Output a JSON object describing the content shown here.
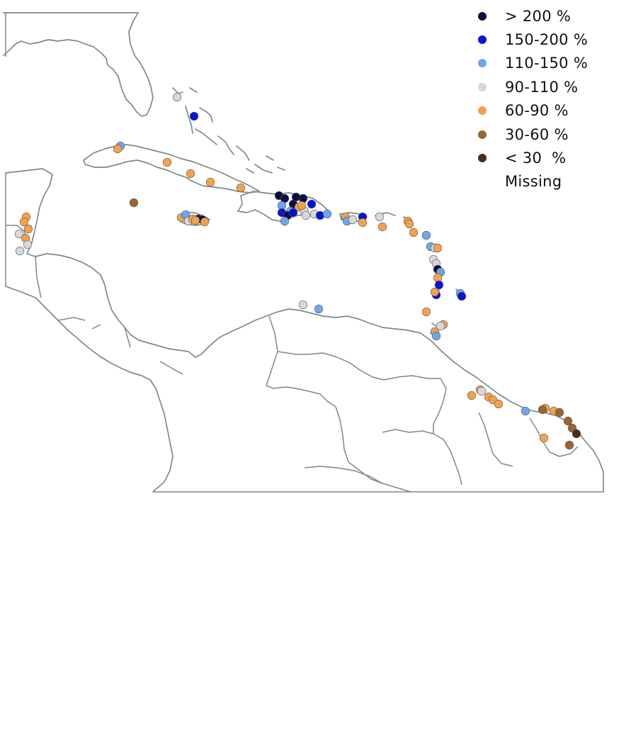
{
  "legend": {
    "items": [
      {
        "key": "gt200",
        "label": "> 200 %",
        "color": "#0b0d45"
      },
      {
        "key": "150-200",
        "label": "150-200 %",
        "color": "#0613d8"
      },
      {
        "key": "110-150",
        "label": "110-150 %",
        "color": "#6ea6ec"
      },
      {
        "key": "90-110",
        "label": "90-110 %",
        "color": "#d8d8d8"
      },
      {
        "key": "60-90",
        "label": "60-90 %",
        "color": "#f4a14a"
      },
      {
        "key": "30-60",
        "label": "30-60 %",
        "color": "#9b6430"
      },
      {
        "key": "lt30",
        "label": "< 30  %",
        "color": "#4a2e12"
      },
      {
        "key": "missing",
        "label": "Missing",
        "color": "transparent"
      }
    ]
  }
}
